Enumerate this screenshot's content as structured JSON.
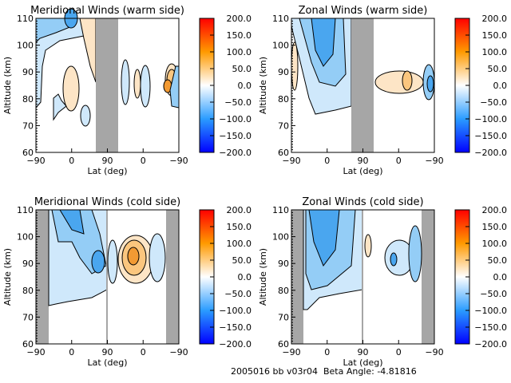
{
  "chart_data": [
    {
      "type": "heatmap",
      "title": "Meridional Winds (warm side)",
      "xlabel": "Lat (deg)",
      "ylabel": "Altitude (km)",
      "xticks": [
        "-90",
        "0",
        "90",
        "0",
        "-90"
      ],
      "yticks": [
        "60",
        "70",
        "80",
        "90",
        "100",
        "110"
      ],
      "ylim": [
        60,
        110
      ],
      "colorbar": {
        "ticks": [
          "200.0",
          "150.0",
          "100.0",
          "50.0",
          "0.0",
          "-50.0",
          "-100.0",
          "-150.0",
          "-200.0"
        ],
        "range": [
          -200,
          200
        ]
      }
    },
    {
      "type": "heatmap",
      "title": "Zonal Winds (warm side)",
      "xlabel": "Lat (deg)",
      "ylabel": "Altitude (km)",
      "xticks": [
        "-90",
        "0",
        "90",
        "0",
        "-90"
      ],
      "yticks": [
        "60",
        "70",
        "80",
        "90",
        "100",
        "110"
      ],
      "ylim": [
        60,
        110
      ],
      "colorbar": {
        "ticks": [
          "200.0",
          "150.0",
          "100.0",
          "50.0",
          "0.0",
          "-50.0",
          "-100.0",
          "-150.0",
          "-200.0"
        ],
        "range": [
          -200,
          200
        ]
      }
    },
    {
      "type": "heatmap",
      "title": "Meridional Winds (cold side)",
      "xlabel": "Lat (deg)",
      "ylabel": "Altitude (km)",
      "xticks": [
        "-90",
        "0",
        "90",
        "0",
        "-90"
      ],
      "yticks": [
        "60",
        "70",
        "80",
        "90",
        "100",
        "110"
      ],
      "ylim": [
        60,
        110
      ],
      "colorbar": {
        "ticks": [
          "200.0",
          "150.0",
          "100.0",
          "50.0",
          "0.0",
          "-50.0",
          "-100.0",
          "-150.0",
          "-200.0"
        ],
        "range": [
          -200,
          200
        ]
      }
    },
    {
      "type": "heatmap",
      "title": "Zonal Winds (cold side)",
      "xlabel": "Lat (deg)",
      "ylabel": "Altitude (km)",
      "xticks": [
        "-90",
        "0",
        "90",
        "0",
        "-90"
      ],
      "yticks": [
        "60",
        "70",
        "80",
        "90",
        "100",
        "110"
      ],
      "ylim": [
        60,
        110
      ],
      "colorbar": {
        "ticks": [
          "200.0",
          "150.0",
          "100.0",
          "50.0",
          "0.0",
          "-50.0",
          "-100.0",
          "-150.0",
          "-200.0"
        ],
        "range": [
          -200,
          200
        ]
      }
    }
  ],
  "footer": "2005016 bb v03r04  Beta Angle: -4.81816"
}
